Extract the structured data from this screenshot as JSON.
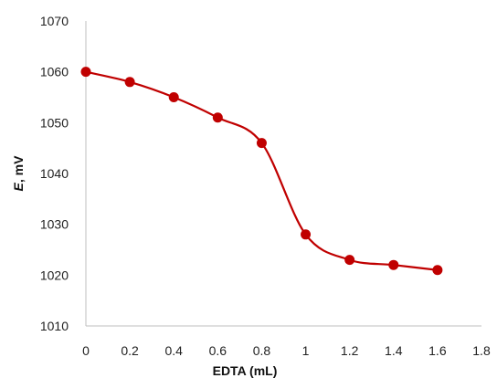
{
  "chart_data": {
    "type": "scatter",
    "title": "",
    "xlabel": "EDTA (mL)",
    "ylabel_var": "E",
    "ylabel_unit": ", mV",
    "xlim": [
      0,
      1.8
    ],
    "ylim": [
      1010,
      1070
    ],
    "x_ticks": [
      "0",
      "0.2",
      "0.4",
      "0.6",
      "0.8",
      "1",
      "1.2",
      "1.4",
      "1.6",
      "1.8"
    ],
    "y_ticks": [
      "1010",
      "1020",
      "1030",
      "1040",
      "1050",
      "1060",
      "1070"
    ],
    "grid": false,
    "legend": "none",
    "smooth_line": true,
    "series": [
      {
        "color": "#c00000",
        "points": [
          {
            "x": 0,
            "y": 1060
          },
          {
            "x": 0.2,
            "y": 1058
          },
          {
            "x": 0.4,
            "y": 1055
          },
          {
            "x": 0.6,
            "y": 1051
          },
          {
            "x": 0.8,
            "y": 1046
          },
          {
            "x": 1.0,
            "y": 1028
          },
          {
            "x": 1.2,
            "y": 1023
          },
          {
            "x": 1.4,
            "y": 1022
          },
          {
            "x": 1.6,
            "y": 1021
          }
        ]
      }
    ]
  }
}
